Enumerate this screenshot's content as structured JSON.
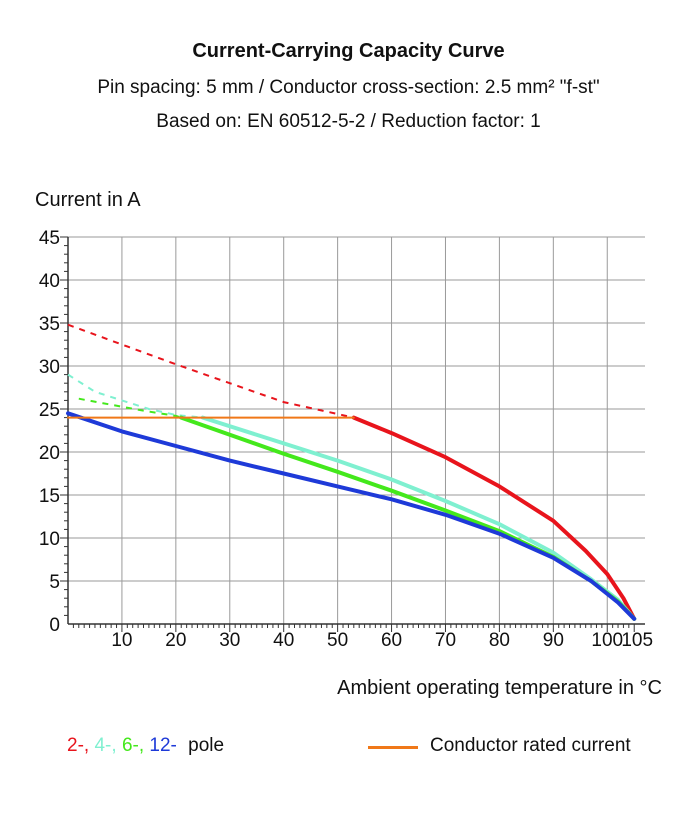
{
  "chart_data": {
    "type": "line",
    "title": "Current-Carrying Capacity Curve",
    "subtitle_lines": [
      "Pin spacing: 5 mm / Conductor cross-section: 2.5 mm² \"f-st\"",
      "Based on: EN 60512-5-2 / Reduction factor: 1"
    ],
    "ylabel": "Current in A",
    "xlabel": "Ambient operating temperature in °C",
    "xlim": [
      0,
      107
    ],
    "ylim": [
      0,
      45
    ],
    "x_ticks": [
      "10",
      "20",
      "30",
      "40",
      "50",
      "60",
      "70",
      "80",
      "90",
      "100",
      "105"
    ],
    "x_tick_values": [
      10,
      20,
      30,
      40,
      50,
      60,
      70,
      80,
      90,
      100,
      105
    ],
    "y_ticks": [
      "0",
      "5",
      "10",
      "15",
      "20",
      "25",
      "30",
      "35",
      "40",
      "45"
    ],
    "y_tick_values": [
      0,
      5,
      10,
      15,
      20,
      25,
      30,
      35,
      40,
      45
    ],
    "grid": true,
    "series": [
      {
        "name": "2-pole",
        "color": "#e8141c",
        "dashed_points": [
          [
            0,
            34.8
          ],
          [
            10,
            32.5
          ],
          [
            20,
            30.2
          ],
          [
            30,
            28.0
          ],
          [
            40,
            25.8
          ],
          [
            53,
            24
          ]
        ],
        "solid_points": [
          [
            53,
            24
          ],
          [
            60,
            22.2
          ],
          [
            70,
            19.4
          ],
          [
            80,
            16.0
          ],
          [
            90,
            12.0
          ],
          [
            96,
            8.5
          ],
          [
            100,
            5.8
          ],
          [
            103,
            3.0
          ],
          [
            105,
            0.6
          ]
        ]
      },
      {
        "name": "4-pole",
        "color": "#7ff0d0",
        "dashed_points": [
          [
            0,
            29
          ],
          [
            5,
            27
          ],
          [
            10,
            26
          ],
          [
            15,
            25
          ],
          [
            20,
            24.3
          ],
          [
            25,
            24
          ]
        ],
        "solid_points": [
          [
            25,
            24
          ],
          [
            40,
            21.0
          ],
          [
            50,
            19.0
          ],
          [
            60,
            16.8
          ],
          [
            70,
            14.3
          ],
          [
            80,
            11.6
          ],
          [
            90,
            8.3
          ],
          [
            97,
            5.2
          ],
          [
            102,
            2.8
          ],
          [
            105,
            0.6
          ]
        ]
      },
      {
        "name": "6-pole",
        "color": "#44e81c",
        "dashed_points": [
          [
            2,
            26.2
          ],
          [
            8,
            25.5
          ],
          [
            14,
            24.8
          ],
          [
            20,
            24.2
          ],
          [
            21,
            24
          ]
        ],
        "solid_points": [
          [
            21,
            24
          ],
          [
            30,
            22.0
          ],
          [
            40,
            19.8
          ],
          [
            50,
            17.7
          ],
          [
            60,
            15.5
          ],
          [
            70,
            13.2
          ],
          [
            80,
            10.8
          ],
          [
            90,
            7.8
          ],
          [
            97,
            5.0
          ],
          [
            102,
            2.6
          ],
          [
            105,
            0.6
          ]
        ]
      },
      {
        "name": "12-pole",
        "color": "#1e3ad8",
        "dashed_points": [],
        "solid_points": [
          [
            0,
            24.5
          ],
          [
            10,
            22.4
          ],
          [
            20,
            20.7
          ],
          [
            30,
            19.0
          ],
          [
            40,
            17.5
          ],
          [
            50,
            16.0
          ],
          [
            60,
            14.5
          ],
          [
            70,
            12.7
          ],
          [
            80,
            10.5
          ],
          [
            90,
            7.7
          ],
          [
            97,
            5.0
          ],
          [
            102,
            2.5
          ],
          [
            105,
            0.6
          ]
        ]
      },
      {
        "name": "Conductor rated current",
        "color": "#f07818",
        "dashed_points": [],
        "solid_points": [
          [
            0,
            24
          ],
          [
            53,
            24
          ]
        ]
      }
    ],
    "legend": {
      "placement": "bottom",
      "poles": [
        {
          "text": "2-,",
          "color": "#e8141c"
        },
        {
          "text": "4-,",
          "color": "#7ff0d0"
        },
        {
          "text": "6-,",
          "color": "#44e81c"
        },
        {
          "text": "12-",
          "color": "#1e3ad8"
        }
      ],
      "poles_suffix": "pole",
      "rated": "Conductor rated current",
      "rated_color": "#f07818"
    }
  }
}
